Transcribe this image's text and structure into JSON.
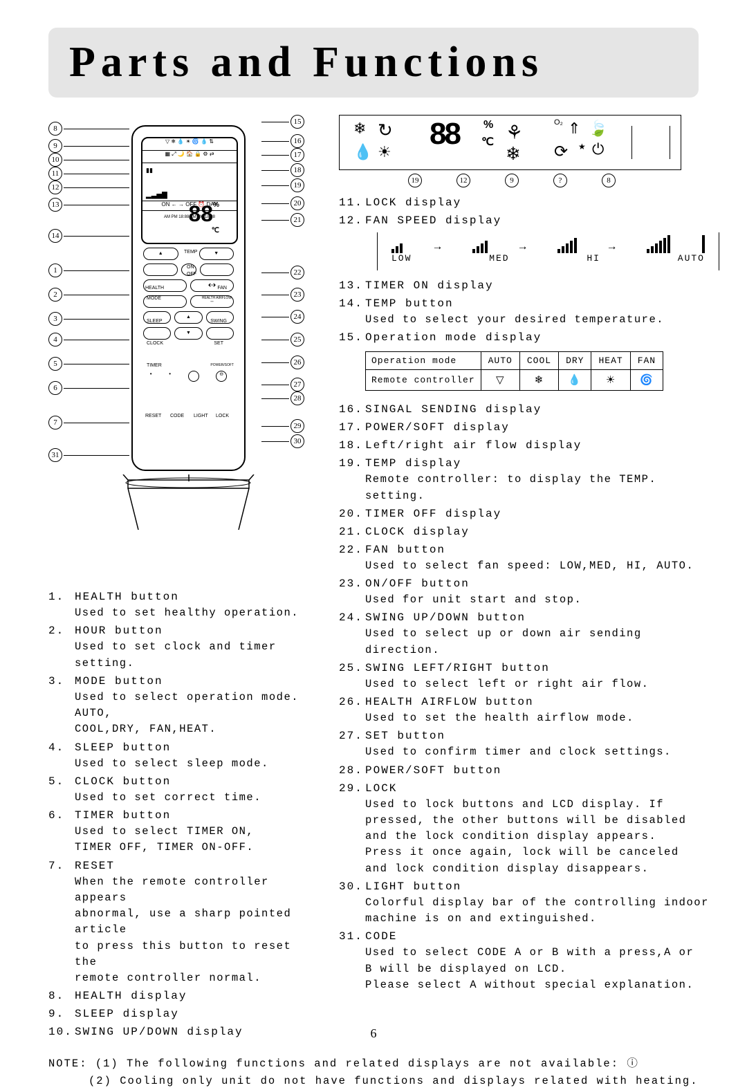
{
  "title": "Parts and Functions",
  "page_number": "6",
  "lcd_digits": "88",
  "lcd_pct": "%",
  "lcd_c": "℃",
  "lcd_callout_nums": [
    "19",
    "12",
    "9",
    "?",
    "8"
  ],
  "remote_left_callouts": [
    "8",
    "9",
    "10",
    "11",
    "12",
    "13",
    "14",
    "1",
    "2",
    "3",
    "4",
    "5",
    "6",
    "7",
    "31"
  ],
  "remote_right_callouts": [
    "15",
    "16",
    "17",
    "18",
    "19",
    "20",
    "21",
    "22",
    "23",
    "24",
    "25",
    "26",
    "27",
    "28",
    "29",
    "30"
  ],
  "remote_buttons": {
    "temp": "TEMP",
    "on": "ON",
    "off": "OFF",
    "health": "HEALTH",
    "fan": "FAN",
    "mode": "MODE",
    "health_airflow": "HEALTH AIRFLOW",
    "sleep": "SLEEP",
    "swing": "SWING",
    "clock": "CLOCK",
    "set": "SET",
    "timer": "TIMER",
    "powersoft": "POWER/SOFT",
    "reset": "RESET",
    "code": "CODE",
    "light": "LIGHT",
    "lock": "LOCK"
  },
  "fan_labels": [
    "LOW",
    "MED",
    "HI",
    "AUTO"
  ],
  "op_table": {
    "header": [
      "Operation mode",
      "AUTO",
      "COOL",
      "DRY",
      "HEAT",
      "FAN"
    ],
    "row_label": "Remote controller",
    "icons": [
      "▽",
      "❄",
      "💧",
      "☀",
      "🌀"
    ]
  },
  "left_items": [
    {
      "n": "1.",
      "t": "HEALTH button",
      "d": [
        "Used to set healthy operation."
      ]
    },
    {
      "n": "2.",
      "t": "HOUR button",
      "d": [
        "Used to set clock and timer setting."
      ]
    },
    {
      "n": "3.",
      "t": "MODE button",
      "d": [
        "Used to select operation mode. AUTO,",
        "COOL,DRY, FAN,HEAT."
      ]
    },
    {
      "n": "4.",
      "t": "SLEEP button",
      "d": [
        "Used to select sleep mode."
      ]
    },
    {
      "n": "5.",
      "t": "CLOCK button",
      "d": [
        "Used to set correct time."
      ]
    },
    {
      "n": "6.",
      "t": "TIMER button",
      "d": [
        "Used to select TIMER ON,",
        "TIMER OFF, TIMER ON-OFF."
      ]
    },
    {
      "n": "7.",
      "t": "RESET",
      "d": [
        "When the remote controller appears",
        "abnormal, use a sharp pointed article",
        "to press this button to reset the",
        "remote controller normal."
      ]
    },
    {
      "n": "8.",
      "t": "HEALTH display",
      "d": []
    },
    {
      "n": "9.",
      "t": "SLEEP display",
      "d": []
    },
    {
      "n": "10.",
      "t": "SWING UP/DOWN display",
      "d": []
    }
  ],
  "right_top_items": [
    {
      "n": "11.",
      "t": "LOCK display",
      "d": []
    },
    {
      "n": "12.",
      "t": "FAN SPEED display",
      "d": []
    }
  ],
  "right_mid_items": [
    {
      "n": "13.",
      "t": "TIMER ON display",
      "d": []
    },
    {
      "n": "14.",
      "t": "TEMP button",
      "d": [
        "Used to select your desired temperature."
      ]
    },
    {
      "n": "15.",
      "t": "Operation mode display",
      "d": []
    }
  ],
  "right_items": [
    {
      "n": "16.",
      "t": "SINGAL SENDING display",
      "d": []
    },
    {
      "n": "17.",
      "t": "POWER/SOFT display",
      "d": []
    },
    {
      "n": "18.",
      "t": "Left/right air flow display",
      "d": []
    },
    {
      "n": "19.",
      "t": "TEMP display",
      "d": [
        "Remote controller: to display the TEMP. setting."
      ]
    },
    {
      "n": "20.",
      "t": "TIMER OFF display",
      "d": []
    },
    {
      "n": "21.",
      "t": "CLOCK display",
      "d": []
    },
    {
      "n": "22.",
      "t": "FAN button",
      "d": [
        "Used to select fan speed: LOW,MED, HI, AUTO."
      ]
    },
    {
      "n": "23.",
      "t": "ON/OFF button",
      "d": [
        "Used for unit start and stop."
      ]
    },
    {
      "n": "24.",
      "t": "SWING UP/DOWN button",
      "d": [
        "Used to select up or down air sending direction."
      ]
    },
    {
      "n": "25.",
      "t": "SWING LEFT/RIGHT button",
      "d": [
        "Used to select left or right air flow."
      ]
    },
    {
      "n": "26.",
      "t": "HEALTH AIRFLOW button",
      "d": [
        "Used to set the health airflow mode."
      ]
    },
    {
      "n": "27.",
      "t": "SET button",
      "d": [
        "Used to confirm timer and clock settings."
      ]
    },
    {
      "n": "28.",
      "t": "POWER/SOFT button",
      "d": []
    },
    {
      "n": "29.",
      "t": "LOCK",
      "d": [
        "Used to lock buttons and LCD display. If",
        "pressed, the other buttons will be disabled",
        "and the lock condition display appears.",
        "Press it once again, lock will be canceled",
        "and lock condition display disappears."
      ]
    },
    {
      "n": "30.",
      "t": "LIGHT button",
      "d": [
        "Colorful display bar of the controlling indoor",
        "machine is on and extinguished."
      ]
    },
    {
      "n": "31.",
      "t": "CODE",
      "d": [
        "Used to select CODE A or B with a press,A or",
        "B will be displayed on LCD.",
        "Please select A without special explanation."
      ]
    }
  ],
  "note_label": "NOTE:",
  "note_lines": [
    "(1) The following functions and related displays are not available: ⓘ",
    "(2) Cooling only unit do not have functions and displays related with heating."
  ],
  "remote_display": {
    "big_temp": "88",
    "time_row": "AM PM 18:88    AM PM 18:88",
    "on_off_day": "ON ← → OFF   ⏰   DAY"
  }
}
